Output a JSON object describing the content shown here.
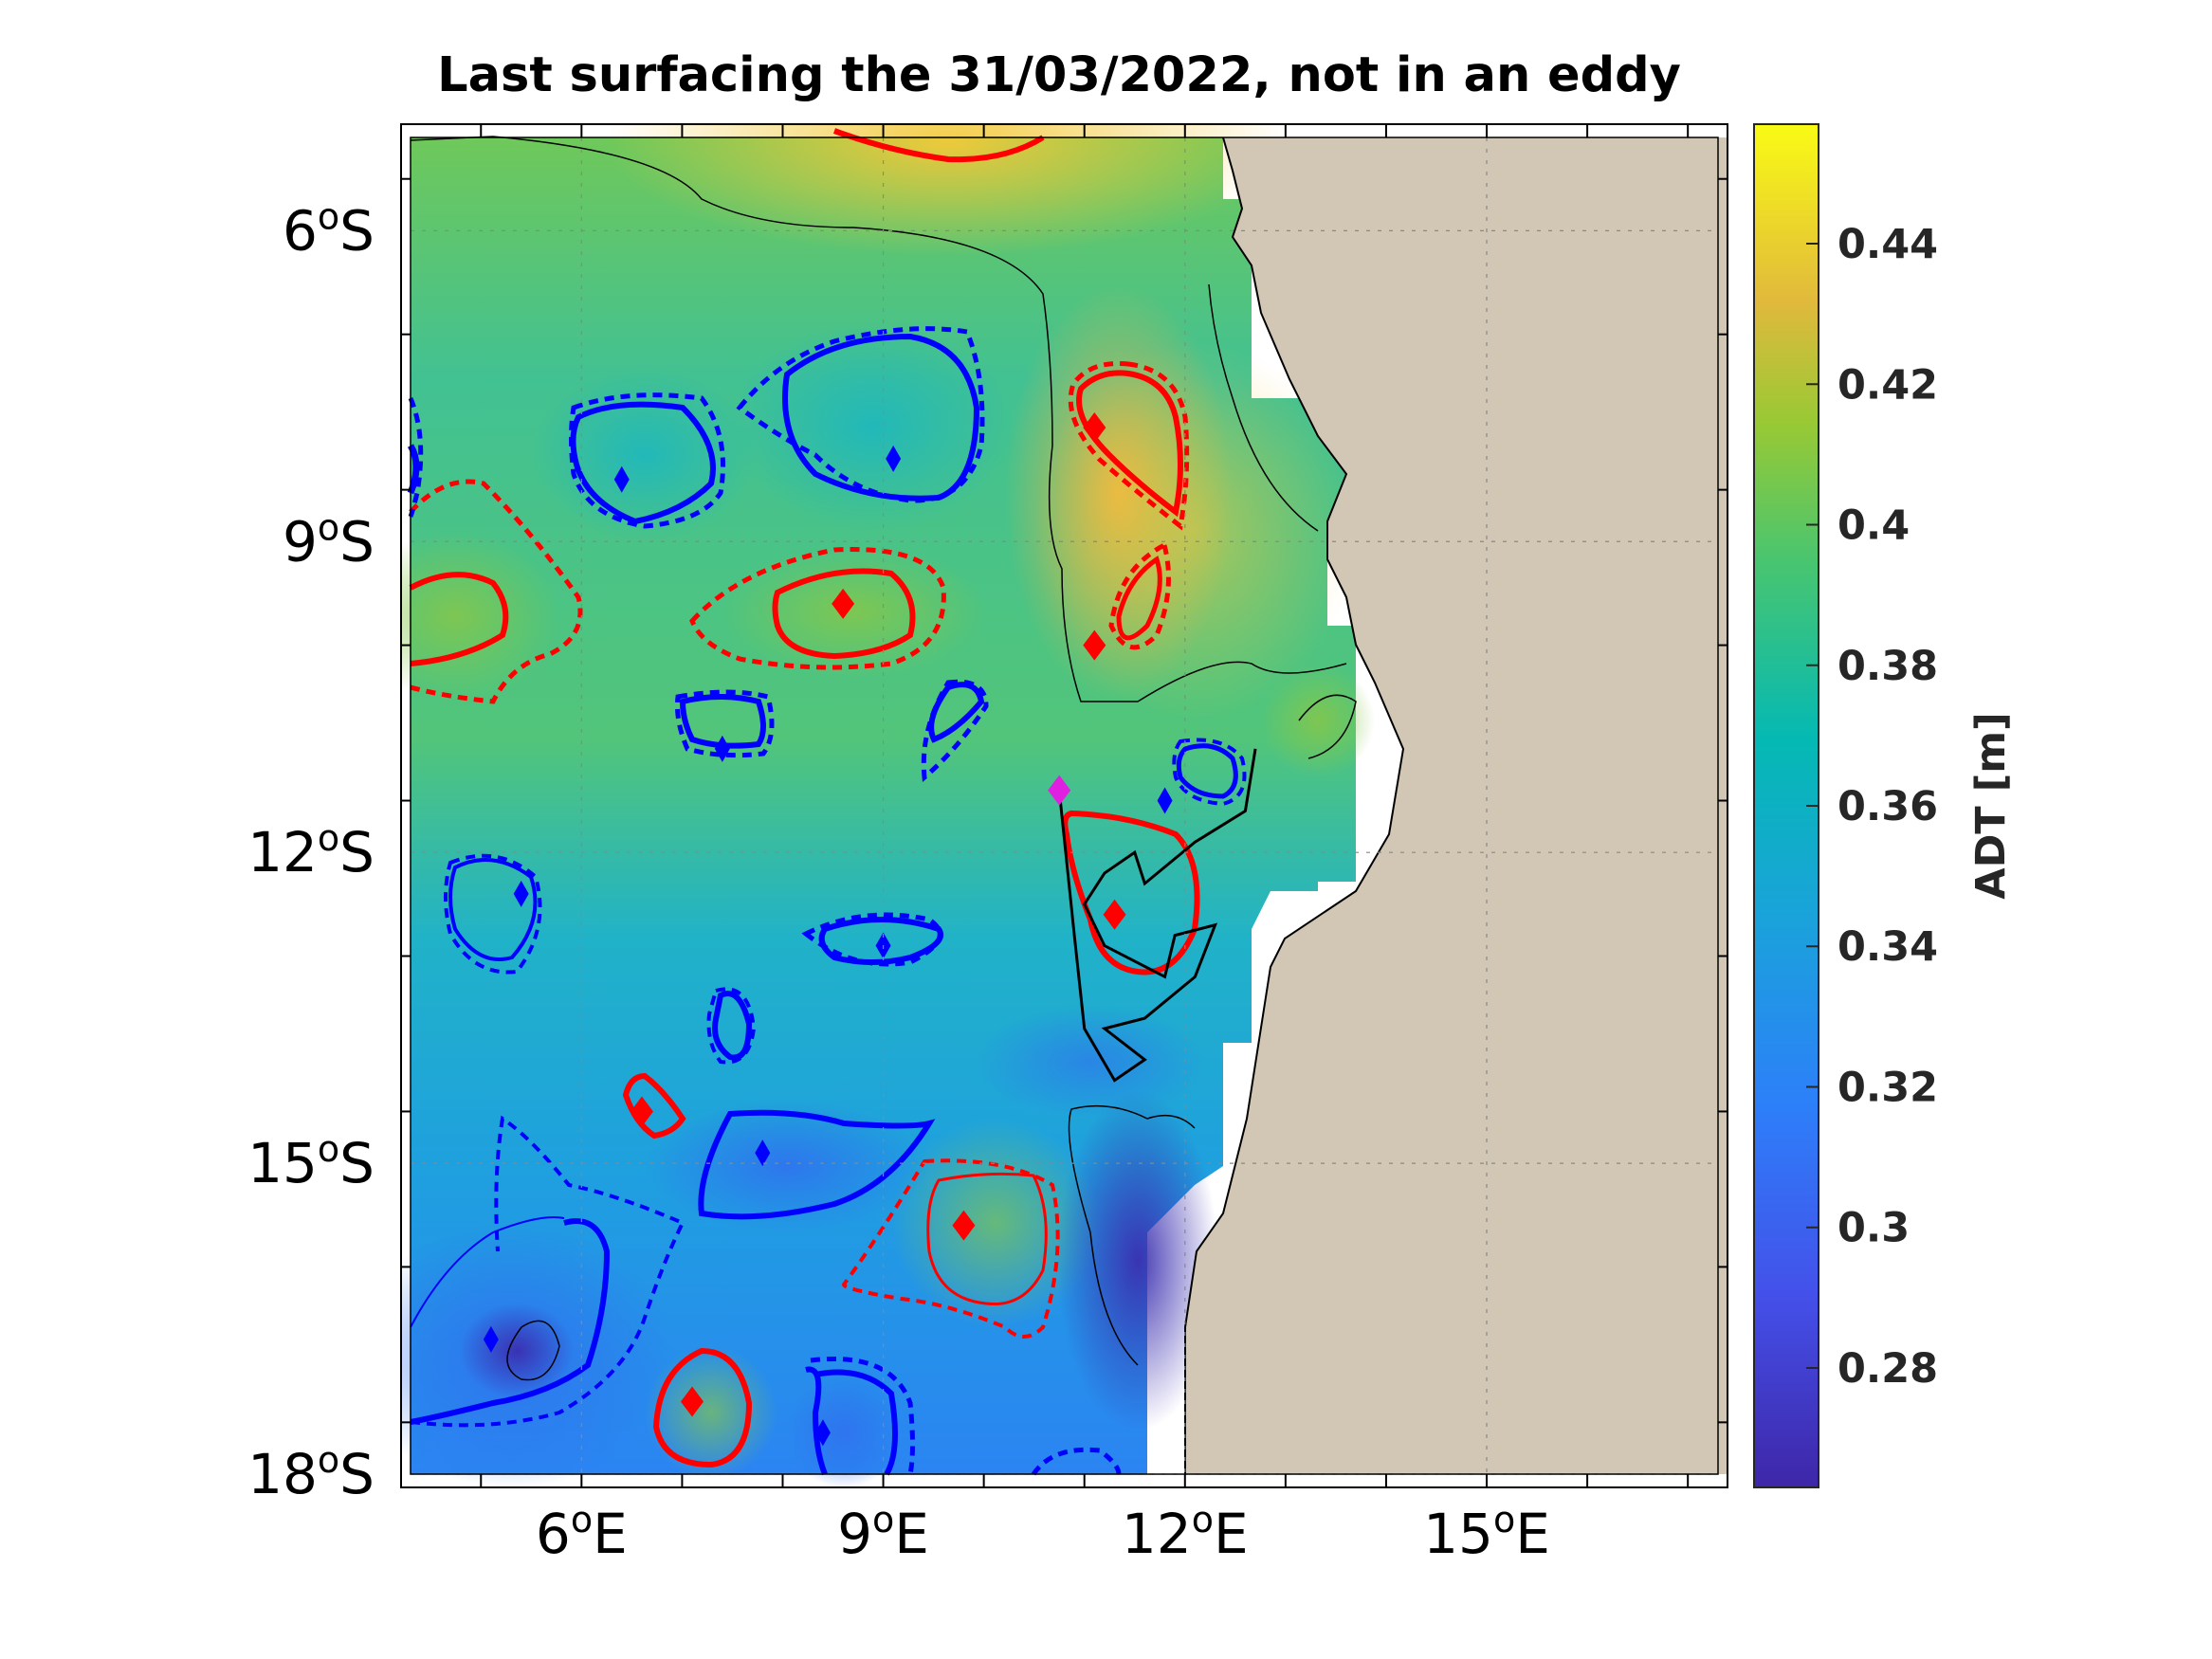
{
  "title": "Last surfacing the 31/03/2022, not in an eddy",
  "map": {
    "lon_range": [
      4.3,
      17.3
    ],
    "lat_range": [
      -18.0,
      -5.1
    ],
    "x_ticks": [
      {
        "lon": 6,
        "label": "6",
        "hem": "E"
      },
      {
        "lon": 9,
        "label": "9",
        "hem": "E"
      },
      {
        "lon": 12,
        "label": "12",
        "hem": "E"
      },
      {
        "lon": 15,
        "label": "15",
        "hem": "E"
      }
    ],
    "y_ticks": [
      {
        "lat": -6,
        "label": "6",
        "hem": "S"
      },
      {
        "lat": -9,
        "label": "9",
        "hem": "S"
      },
      {
        "lat": -12,
        "label": "12",
        "hem": "S"
      },
      {
        "lat": -15,
        "label": "15",
        "hem": "S"
      },
      {
        "lat": -18,
        "label": "18",
        "hem": "S"
      }
    ],
    "degree_symbol": "o",
    "land_color": "#d2c7b5",
    "grid": true
  },
  "colorbar": {
    "label": "ADT [m]",
    "range": [
      0.263,
      0.457
    ],
    "ticks": [
      "0.44",
      "0.42",
      "0.4",
      "0.38",
      "0.36",
      "0.34",
      "0.32",
      "0.3",
      "0.28"
    ],
    "tick_values": [
      0.44,
      0.42,
      0.4,
      0.38,
      0.36,
      0.34,
      0.32,
      0.3,
      0.28
    ],
    "colormap": "parula"
  },
  "colors": {
    "anticyclonic": "#ff0000",
    "cyclonic": "#0000ff",
    "trajectory": "#000000",
    "last_position": "#e020e0"
  },
  "eddy_centers": [
    {
      "type": "anticyclonic",
      "lon": 11.1,
      "lat": -7.9
    },
    {
      "type": "anticyclonic",
      "lon": 8.6,
      "lat": -9.6
    },
    {
      "type": "anticyclonic",
      "lon": 11.1,
      "lat": -10.0
    },
    {
      "type": "anticyclonic",
      "lon": 11.3,
      "lat": -12.6
    },
    {
      "type": "anticyclonic",
      "lon": 9.8,
      "lat": -15.6
    },
    {
      "type": "anticyclonic",
      "lon": 7.1,
      "lat": -17.3
    },
    {
      "type": "anticyclonic",
      "lon": 6.6,
      "lat": -14.5
    },
    {
      "type": "cyclonic",
      "lon": 9.1,
      "lat": -8.2
    },
    {
      "type": "cyclonic",
      "lon": 6.4,
      "lat": -8.4
    },
    {
      "type": "cyclonic",
      "lon": 7.4,
      "lat": -11.0
    },
    {
      "type": "cyclonic",
      "lon": 11.8,
      "lat": -11.5
    },
    {
      "type": "cyclonic",
      "lon": 5.4,
      "lat": -12.4
    },
    {
      "type": "cyclonic",
      "lon": 9.0,
      "lat": -12.9
    },
    {
      "type": "cyclonic",
      "lon": 7.8,
      "lat": -14.9
    },
    {
      "type": "cyclonic",
      "lon": 5.1,
      "lat": -16.7
    },
    {
      "type": "cyclonic",
      "lon": 8.4,
      "lat": -17.6
    }
  ],
  "last_surfacing": {
    "lon": 10.75,
    "lat": -11.4
  },
  "float_trajectory": [
    [
      12.7,
      -11.0
    ],
    [
      12.6,
      -11.6
    ],
    [
      12.1,
      -11.9
    ],
    [
      11.6,
      -12.3
    ],
    [
      11.5,
      -12.0
    ],
    [
      11.2,
      -12.2
    ],
    [
      11.0,
      -12.5
    ],
    [
      11.2,
      -12.9
    ],
    [
      11.8,
      -13.2
    ],
    [
      11.9,
      -12.8
    ],
    [
      12.3,
      -12.7
    ],
    [
      12.1,
      -13.2
    ],
    [
      11.6,
      -13.6
    ],
    [
      11.2,
      -13.7
    ],
    [
      11.6,
      -14.0
    ],
    [
      11.3,
      -14.2
    ],
    [
      11.0,
      -13.7
    ],
    [
      10.9,
      -12.8
    ],
    [
      10.75,
      -11.4
    ]
  ]
}
